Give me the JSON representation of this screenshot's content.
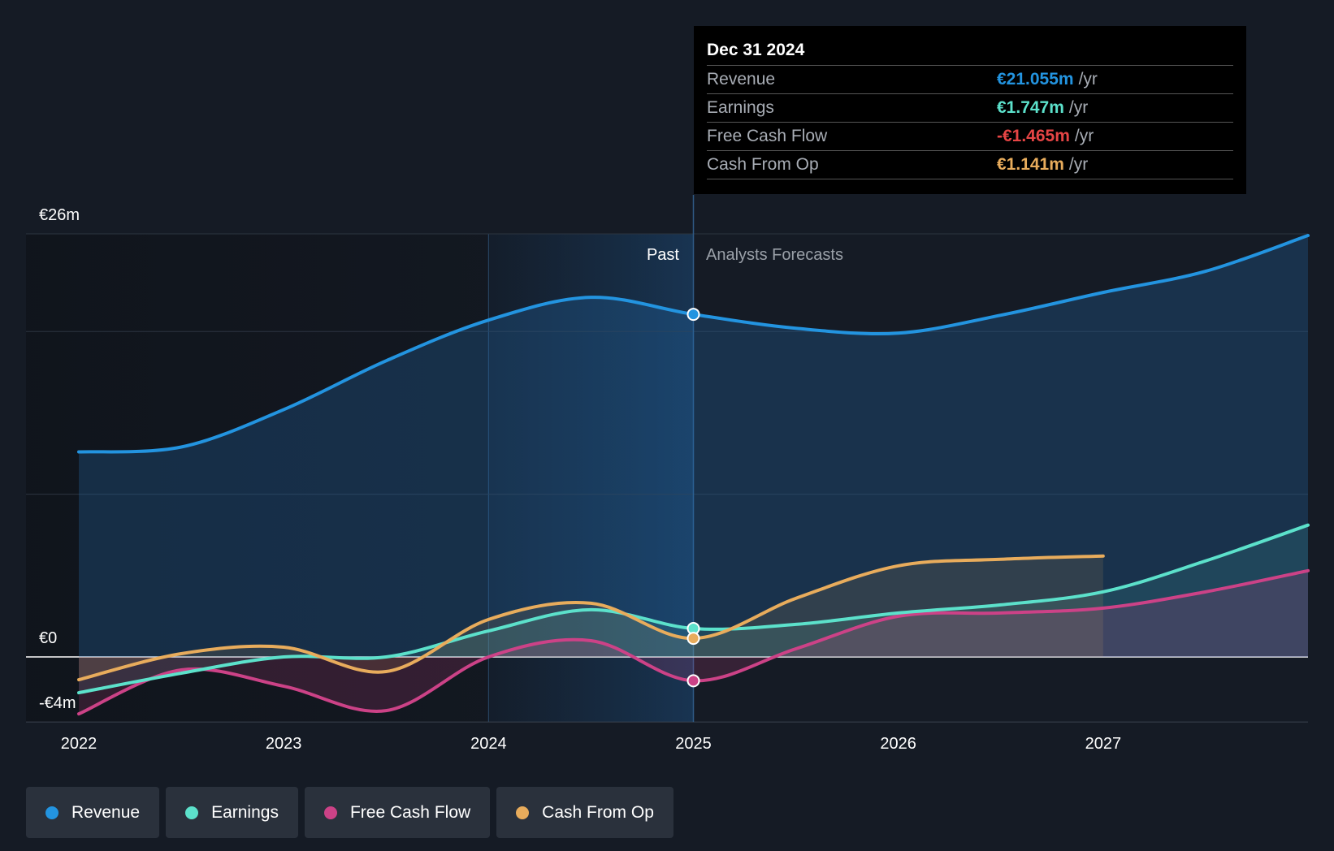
{
  "chart_data": {
    "type": "line",
    "y_unit_labels": {
      "top": "€26m",
      "zero": "€0",
      "bottom": "-€4m"
    },
    "ylim": [
      -4,
      26
    ],
    "xlim": [
      2022,
      2028
    ],
    "x_ticks": [
      "2022",
      "2023",
      "2024",
      "2025",
      "2026",
      "2027"
    ],
    "zones": {
      "past": "Past",
      "forecast": "Analysts Forecasts",
      "divider_x": 2025
    },
    "series": [
      {
        "name": "Revenue",
        "color": "#2394e0",
        "points": [
          [
            2022,
            12.6
          ],
          [
            2022.5,
            12.9
          ],
          [
            2023,
            15.2
          ],
          [
            2023.5,
            18.2
          ],
          [
            2024,
            20.7
          ],
          [
            2024.5,
            22.1
          ],
          [
            2025,
            21.055
          ],
          [
            2025.5,
            20.2
          ],
          [
            2026,
            19.9
          ],
          [
            2026.5,
            21.0
          ],
          [
            2027,
            22.4
          ],
          [
            2027.5,
            23.7
          ],
          [
            2028,
            25.9
          ]
        ]
      },
      {
        "name": "Earnings",
        "color": "#5ce1cb",
        "points": [
          [
            2022,
            -2.2
          ],
          [
            2022.5,
            -1.0
          ],
          [
            2023,
            0.0
          ],
          [
            2023.5,
            0.0
          ],
          [
            2024,
            1.6
          ],
          [
            2024.5,
            2.9
          ],
          [
            2025,
            1.747
          ],
          [
            2025.5,
            2.0
          ],
          [
            2026,
            2.7
          ],
          [
            2026.5,
            3.2
          ],
          [
            2027,
            4.0
          ],
          [
            2027.5,
            5.9
          ],
          [
            2028,
            8.1
          ]
        ]
      },
      {
        "name": "Free Cash Flow",
        "color": "#cc4287",
        "points": [
          [
            2022,
            -3.5
          ],
          [
            2022.5,
            -0.8
          ],
          [
            2023,
            -1.8
          ],
          [
            2023.5,
            -3.3
          ],
          [
            2024,
            0.0
          ],
          [
            2024.5,
            1.0
          ],
          [
            2025,
            -1.465
          ],
          [
            2025.5,
            0.5
          ],
          [
            2026,
            2.5
          ],
          [
            2026.5,
            2.7
          ],
          [
            2027,
            3.0
          ],
          [
            2027.5,
            4.0
          ],
          [
            2028,
            5.3
          ]
        ]
      },
      {
        "name": "Cash From Op",
        "color": "#e8ac5c",
        "points": [
          [
            2022,
            -1.4
          ],
          [
            2022.5,
            0.2
          ],
          [
            2023,
            0.6
          ],
          [
            2023.5,
            -0.9
          ],
          [
            2024,
            2.3
          ],
          [
            2024.5,
            3.3
          ],
          [
            2025,
            1.141
          ],
          [
            2025.5,
            3.6
          ],
          [
            2026,
            5.6
          ],
          [
            2026.5,
            6.0
          ],
          [
            2027,
            6.2
          ]
        ]
      }
    ]
  },
  "tooltip": {
    "date": "Dec 31 2024",
    "rows": [
      {
        "name": "Revenue",
        "value": "€21.055m",
        "unit": "/yr",
        "color": "#2394e0"
      },
      {
        "name": "Earnings",
        "value": "€1.747m",
        "unit": "/yr",
        "color": "#5ce1cb"
      },
      {
        "name": "Free Cash Flow",
        "value": "-€1.465m",
        "unit": "/yr",
        "color": "#e64545"
      },
      {
        "name": "Cash From Op",
        "value": "€1.141m",
        "unit": "/yr",
        "color": "#e8ac5c"
      }
    ]
  },
  "legend": [
    {
      "label": "Revenue",
      "color": "#2394e0"
    },
    {
      "label": "Earnings",
      "color": "#5ce1cb"
    },
    {
      "label": "Free Cash Flow",
      "color": "#cc4287"
    },
    {
      "label": "Cash From Op",
      "color": "#e8ac5c"
    }
  ]
}
